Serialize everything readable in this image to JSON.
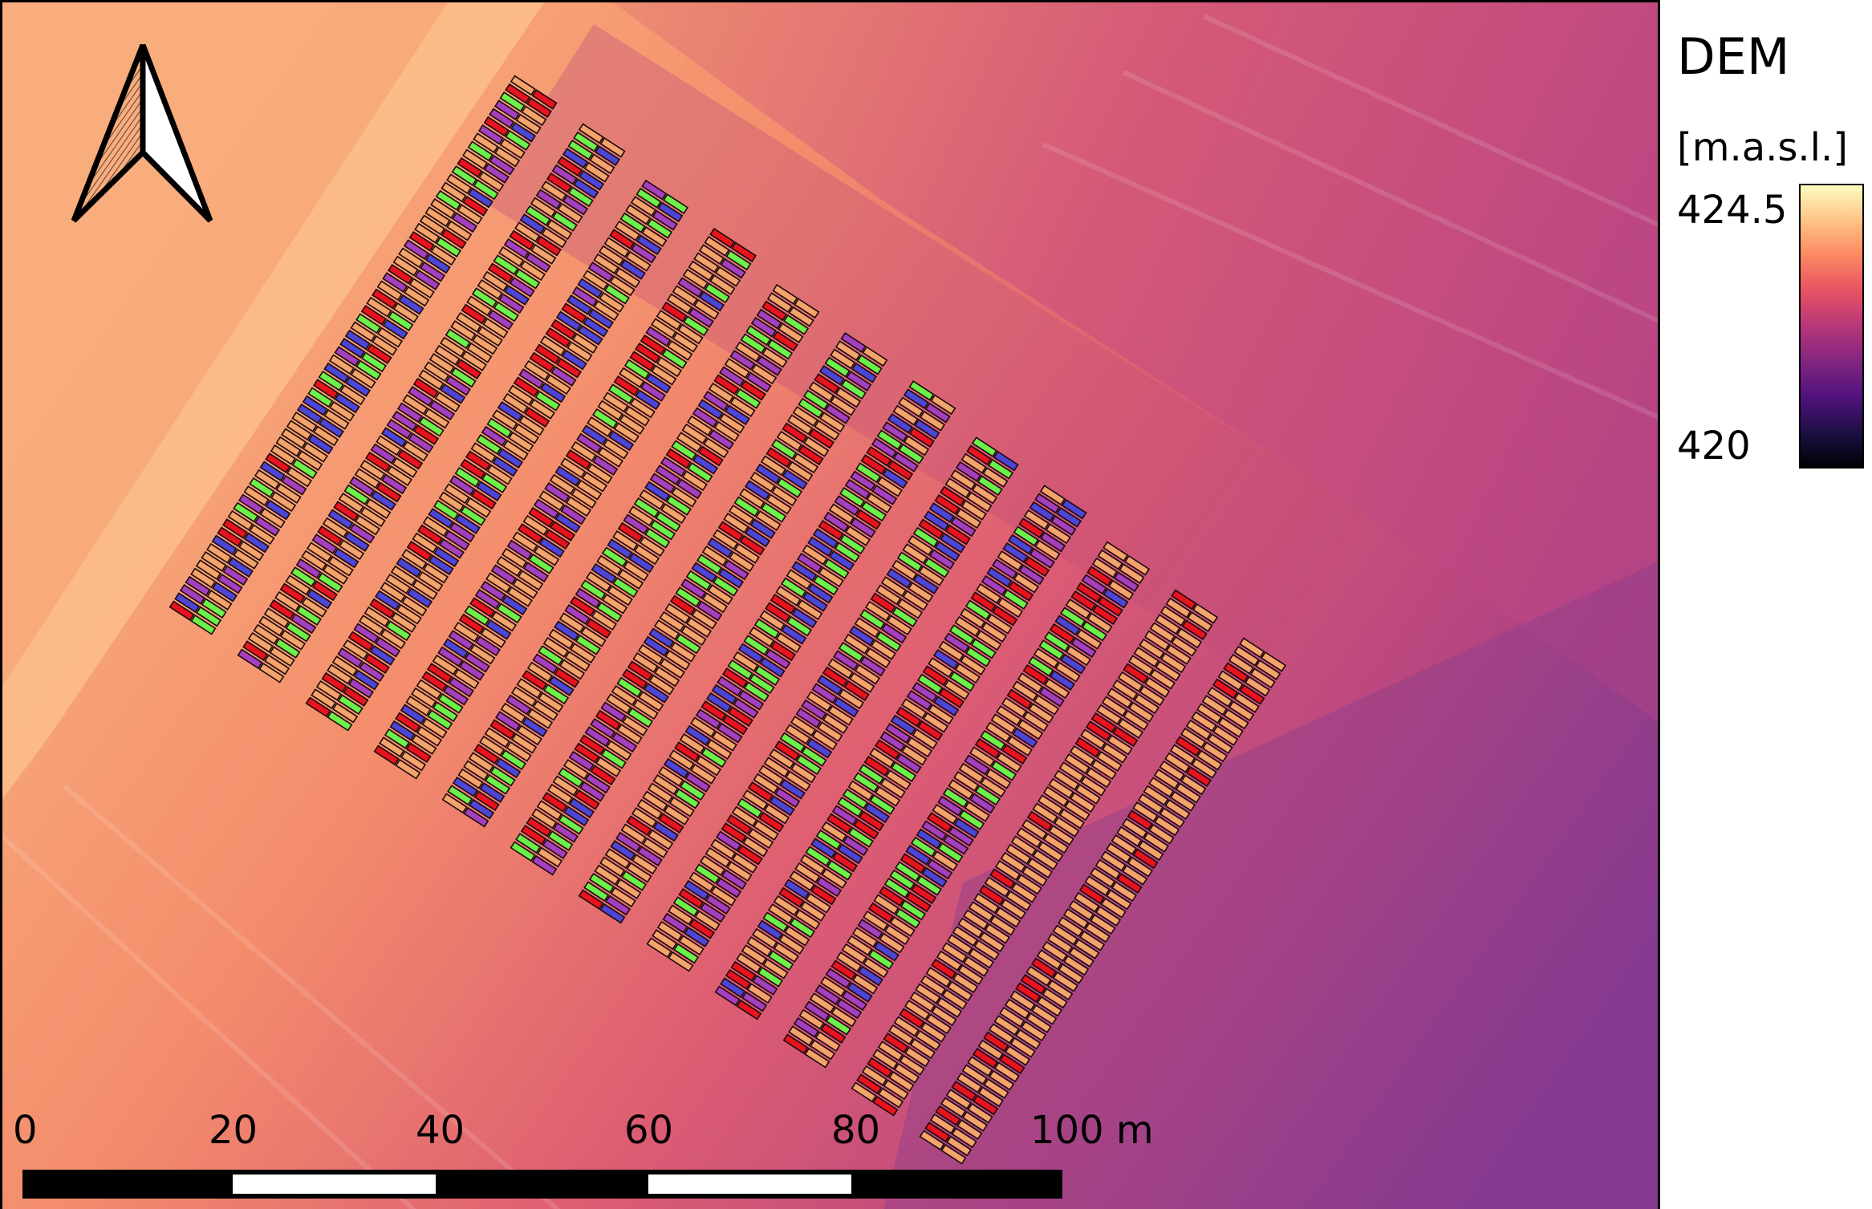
{
  "legend": {
    "title": "DEM",
    "unit": "[m.a.s.l.]",
    "max_label": "424.5",
    "min_label": "420",
    "ramp_colors": [
      "#fcfdbf",
      "#fec488",
      "#fb8861",
      "#e75263",
      "#b73779",
      "#822681",
      "#51127c",
      "#1c1044",
      "#000004"
    ]
  },
  "scale_bar": {
    "labels": [
      "0",
      "20",
      "40",
      "60",
      "80",
      "100 m"
    ]
  },
  "north_arrow": {
    "icon": "north-arrow-icon"
  },
  "plots": {
    "color_names": [
      "orange",
      "red",
      "green",
      "blue",
      "purple"
    ],
    "colors": {
      "orange": "#f4a36a",
      "red": "#e8131e",
      "green": "#6cf04a",
      "blue": "#4c45d6",
      "purple": "#a43fbf"
    }
  }
}
